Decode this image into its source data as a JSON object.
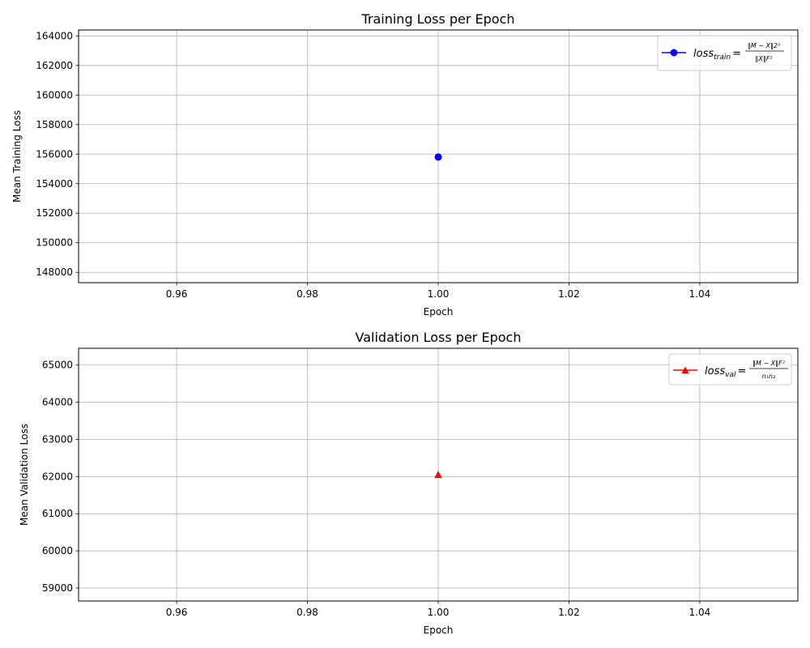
{
  "chart_data": [
    {
      "type": "scatter",
      "title": "Training Loss per Epoch",
      "xlabel": "Epoch",
      "ylabel": "Mean Training Loss",
      "xlim": [
        0.945,
        1.055
      ],
      "ylim": [
        147300,
        164400
      ],
      "xticks": [
        0.96,
        0.98,
        1.0,
        1.02,
        1.04
      ],
      "xtick_labels": [
        "0.96",
        "0.98",
        "1.00",
        "1.02",
        "1.04"
      ],
      "yticks": [
        148000,
        150000,
        152000,
        154000,
        156000,
        158000,
        160000,
        162000,
        164000
      ],
      "ytick_labels": [
        "148000",
        "150000",
        "152000",
        "154000",
        "156000",
        "158000",
        "160000",
        "162000",
        "164000"
      ],
      "grid": true,
      "legend_position": "top-right",
      "series": [
        {
          "legend_lhs": "loss",
          "legend_sub": "train",
          "legend_eq": "=",
          "legend_num": "‖M − X‖2²",
          "legend_den": "‖X‖F²",
          "color": "#0000ff",
          "marker": "circle",
          "x": [
            1.0
          ],
          "y": [
            155800
          ]
        }
      ]
    },
    {
      "type": "scatter",
      "title": "Validation Loss per Epoch",
      "xlabel": "Epoch",
      "ylabel": "Mean Validation Loss",
      "xlim": [
        0.945,
        1.055
      ],
      "ylim": [
        58650,
        65450
      ],
      "xticks": [
        0.96,
        0.98,
        1.0,
        1.02,
        1.04
      ],
      "xtick_labels": [
        "0.96",
        "0.98",
        "1.00",
        "1.02",
        "1.04"
      ],
      "yticks": [
        59000,
        60000,
        61000,
        62000,
        63000,
        64000,
        65000
      ],
      "ytick_labels": [
        "59000",
        "60000",
        "61000",
        "62000",
        "63000",
        "64000",
        "65000"
      ],
      "grid": true,
      "legend_position": "top-right",
      "series": [
        {
          "legend_lhs": "loss",
          "legend_sub": "val",
          "legend_eq": "=",
          "legend_num": "‖M − X‖F²",
          "legend_den": "n₁n₂",
          "color": "#ff0000",
          "marker": "triangle",
          "x": [
            1.0
          ],
          "y": [
            62050
          ]
        }
      ]
    }
  ]
}
